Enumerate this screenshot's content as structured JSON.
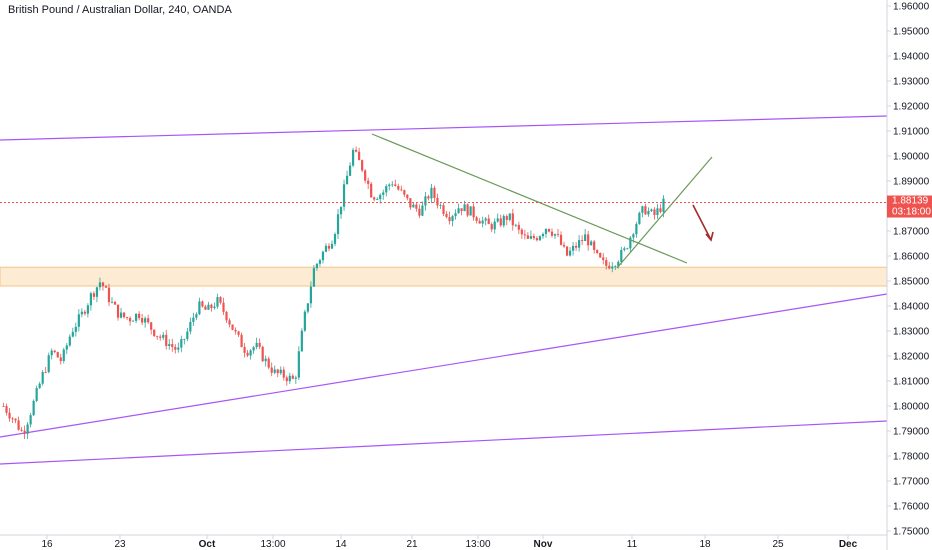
{
  "header": {
    "title": "British Pound / Australian Dollar, 240, OANDA"
  },
  "colors": {
    "background": "#ffffff",
    "up_candle": "#26a69a",
    "down_candle": "#ef5350",
    "channel_line": "#a855f7",
    "trend_line": "#6a9a5a",
    "support_zone_fill": "#fdebd3",
    "support_zone_border": "#f2c48a",
    "price_line": "#ef5350",
    "arrow": "#a52a2a"
  },
  "price_tag": {
    "value": "1.88139",
    "countdown": "03:18:00"
  },
  "chart_data": {
    "type": "candlestick",
    "symbol": "GBPAUD",
    "timeframe": "240",
    "source": "OANDA",
    "y_axis": {
      "ylim": [
        1.745,
        1.965
      ],
      "ticks": [
        "1.96000",
        "1.95000",
        "1.94000",
        "1.93000",
        "1.92000",
        "1.91000",
        "1.90000",
        "1.89000",
        "1.88000",
        "1.87000",
        "1.86000",
        "1.85000",
        "1.84000",
        "1.83000",
        "1.82000",
        "1.81000",
        "1.80000",
        "1.79000",
        "1.78000",
        "1.77000",
        "1.76000",
        "1.75000"
      ]
    },
    "x_axis": {
      "ticks": [
        {
          "label": "16",
          "bold": false
        },
        {
          "label": "23",
          "bold": false
        },
        {
          "label": "Oct",
          "bold": true
        },
        {
          "label": "13:00",
          "bold": false
        },
        {
          "label": "14",
          "bold": false
        },
        {
          "label": "21",
          "bold": false
        },
        {
          "label": "13:00",
          "bold": false
        },
        {
          "label": "Nov",
          "bold": true
        },
        {
          "label": "11",
          "bold": false
        },
        {
          "label": "18",
          "bold": false
        },
        {
          "label": "25",
          "bold": false
        },
        {
          "label": "Dec",
          "bold": true
        }
      ]
    },
    "price_path": [
      1.8,
      1.795,
      1.789,
      1.8,
      1.812,
      1.822,
      1.818,
      1.83,
      1.836,
      1.844,
      1.85,
      1.842,
      1.836,
      1.835,
      1.837,
      1.832,
      1.828,
      1.825,
      1.822,
      1.83,
      1.84,
      1.838,
      1.842,
      1.836,
      1.828,
      1.822,
      1.824,
      1.818,
      1.813,
      1.812,
      1.81,
      1.835,
      1.855,
      1.862,
      1.868,
      1.885,
      1.902,
      1.895,
      1.884,
      1.885,
      1.89,
      1.885,
      1.88,
      1.878,
      1.886,
      1.88,
      1.876,
      1.88,
      1.878,
      1.875,
      1.872,
      1.873,
      1.876,
      1.87,
      1.866,
      1.868,
      1.872,
      1.868,
      1.86,
      1.864,
      1.868,
      1.86,
      1.856,
      1.858,
      1.862,
      1.872,
      1.879,
      1.876,
      1.881
    ],
    "current_price": 1.88139,
    "support_zone": [
      1.848,
      1.8555
    ],
    "channel_lines": [
      {
        "name": "upper"
      },
      {
        "name": "middle"
      },
      {
        "name": "lower"
      }
    ],
    "trend_lines": [
      {
        "name": "descending"
      },
      {
        "name": "ascending"
      }
    ]
  }
}
